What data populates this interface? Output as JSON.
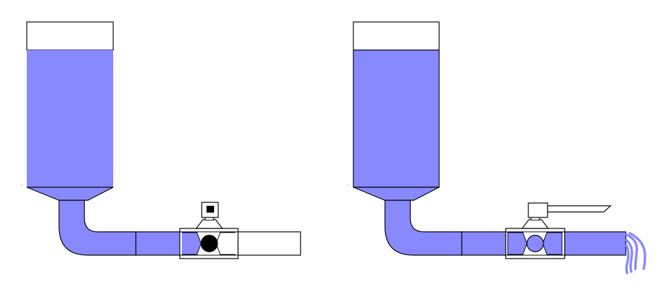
{
  "colors": {
    "fluid": "#8888ff",
    "outline": "#000000",
    "background": "#ffffff",
    "valve_ball_closed": "#000000"
  },
  "systems": [
    {
      "id": "left",
      "valve_state": "closed",
      "handle": "square-knob",
      "outlet_flow": false
    },
    {
      "id": "right",
      "valve_state": "open",
      "handle": "lever",
      "outlet_flow": true
    }
  ]
}
